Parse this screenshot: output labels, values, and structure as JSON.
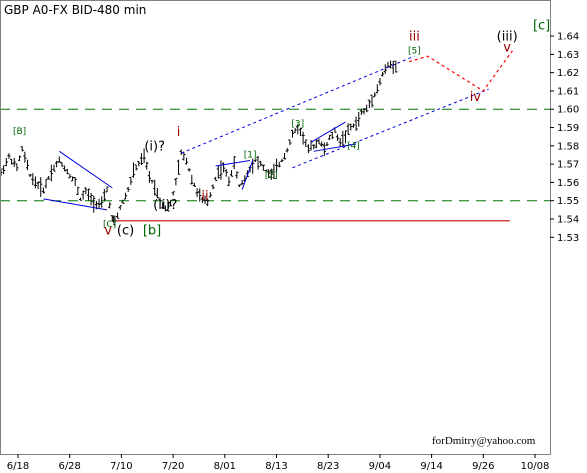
{
  "chart_data": {
    "type": "ohlc",
    "title": "GBP A0-FX BID-480 min",
    "credit": "forDmitry@yahoo.com",
    "xlabel": "",
    "ylabel": "",
    "ylim": [
      1.525,
      1.645
    ],
    "y_ticks": [
      1.53,
      1.54,
      1.55,
      1.56,
      1.57,
      1.58,
      1.59,
      1.6,
      1.61,
      1.62,
      1.63,
      1.64
    ],
    "x_ticks": [
      "6/18",
      "6/28",
      "7/10",
      "7/20",
      "8/01",
      "8/13",
      "8/23",
      "9/04",
      "9/14",
      "9/26",
      "10/08"
    ],
    "colors": {
      "bars": "#000000",
      "channel": "#0000dd",
      "support": "#cc0000",
      "dashed": "#007700",
      "projection": "#ff0000",
      "green_label": "#006600",
      "red_label": "#990000",
      "black_label": "#000000"
    },
    "price_path": [
      [
        0,
        1.565
      ],
      [
        1.5,
        1.574
      ],
      [
        3,
        1.568
      ],
      [
        4,
        1.578
      ],
      [
        5.5,
        1.564
      ],
      [
        6.5,
        1.56
      ],
      [
        8,
        1.556
      ],
      [
        9.5,
        1.566
      ],
      [
        11,
        1.572
      ],
      [
        12.5,
        1.566
      ],
      [
        14,
        1.56
      ],
      [
        15,
        1.551
      ],
      [
        16,
        1.555
      ],
      [
        17.5,
        1.549
      ],
      [
        19,
        1.548
      ],
      [
        20,
        1.556
      ],
      [
        21,
        1.54
      ],
      [
        21.5,
        1.538
      ],
      [
        22.5,
        1.546
      ],
      [
        24,
        1.556
      ],
      [
        25,
        1.566
      ],
      [
        26,
        1.57
      ],
      [
        27,
        1.574
      ],
      [
        28,
        1.563
      ],
      [
        29,
        1.558
      ],
      [
        30,
        1.55
      ],
      [
        31,
        1.546
      ],
      [
        32,
        1.548
      ],
      [
        33,
        1.56
      ],
      [
        34,
        1.576
      ],
      [
        35,
        1.572
      ],
      [
        36,
        1.562
      ],
      [
        37,
        1.555
      ],
      [
        38,
        1.55
      ],
      [
        39,
        1.549
      ],
      [
        40,
        1.558
      ],
      [
        41,
        1.566
      ],
      [
        42,
        1.568
      ],
      [
        43,
        1.561
      ],
      [
        44,
        1.57
      ],
      [
        45,
        1.558
      ],
      [
        46,
        1.562
      ],
      [
        47,
        1.568
      ],
      [
        48,
        1.572
      ],
      [
        49,
        1.57
      ],
      [
        50,
        1.566
      ],
      [
        51,
        1.564
      ],
      [
        52,
        1.568
      ],
      [
        53,
        1.572
      ],
      [
        54,
        1.578
      ],
      [
        55,
        1.586
      ],
      [
        56,
        1.59
      ],
      [
        57,
        1.585
      ],
      [
        58,
        1.578
      ],
      [
        59,
        1.58
      ],
      [
        60,
        1.583
      ],
      [
        61,
        1.578
      ],
      [
        62,
        1.584
      ],
      [
        63,
        1.588
      ],
      [
        64,
        1.582
      ],
      [
        65,
        1.586
      ],
      [
        66,
        1.59
      ],
      [
        67,
        1.592
      ],
      [
        68,
        1.598
      ],
      [
        69,
        1.6
      ],
      [
        70,
        1.606
      ],
      [
        71,
        1.611
      ],
      [
        72,
        1.619
      ],
      [
        73,
        1.624
      ],
      [
        74,
        1.624
      ],
      [
        75,
        1.625
      ]
    ],
    "wave_labels": [
      {
        "text": "[B]",
        "x": 3.5,
        "y": 1.5865,
        "style": "green_small"
      },
      {
        "text": "(i)?",
        "x": 29,
        "y": 1.5775,
        "style": "black"
      },
      {
        "text": "i",
        "x": 33.5,
        "y": 1.5855,
        "style": "red"
      },
      {
        "text": "(ii)?",
        "x": 31,
        "y": 1.5455,
        "style": "black"
      },
      {
        "text": "ii",
        "x": 38.5,
        "y": 1.5505,
        "style": "red"
      },
      {
        "text": "[C]",
        "x": 20.5,
        "y": 1.5355,
        "style": "green_small"
      },
      {
        "text": "v",
        "x": 20.2,
        "y": 1.5315,
        "style": "red"
      },
      {
        "text": "(c)",
        "x": 23.5,
        "y": 1.5315,
        "style": "black"
      },
      {
        "text": "[b]",
        "x": 28.5,
        "y": 1.5315,
        "style": "green"
      },
      {
        "text": "[1]",
        "x": 47,
        "y": 1.5735,
        "style": "green_small"
      },
      {
        "text": "[2]",
        "x": 51,
        "y": 1.5625,
        "style": "green_small"
      },
      {
        "text": "[3]",
        "x": 56,
        "y": 1.5905,
        "style": "green_small"
      },
      {
        "text": "[4]",
        "x": 66.5,
        "y": 1.5785,
        "style": "green_small"
      },
      {
        "text": "[5]",
        "x": 78,
        "y": 1.6305,
        "style": "green_small"
      },
      {
        "text": "iii",
        "x": 78,
        "y": 1.6375,
        "style": "red"
      },
      {
        "text": "(iii)",
        "x": 95.5,
        "y": 1.6375,
        "style": "black"
      },
      {
        "text": "v",
        "x": 95.5,
        "y": 1.6315,
        "style": "red"
      },
      {
        "text": "iv",
        "x": 89.5,
        "y": 1.6045,
        "style": "red"
      },
      {
        "text": "[c]",
        "x": 102,
        "y": 1.6435,
        "style": "green"
      }
    ],
    "support_level": {
      "y": 1.539,
      "x_from": 21,
      "x_to": 96
    },
    "dashed_levels": [
      1.6,
      1.55
    ],
    "channel_upper": [
      [
        34,
        1.576
      ],
      [
        78,
        1.629
      ]
    ],
    "channel_lower": [
      [
        55,
        1.568
      ],
      [
        92,
        1.611
      ]
    ],
    "trendlines": [
      [
        [
          11,
          1.577
        ],
        [
          21,
          1.557
        ]
      ],
      [
        [
          8,
          1.551
        ],
        [
          20,
          1.545
        ]
      ],
      [
        [
          40.5,
          1.569
        ],
        [
          47,
          1.572
        ]
      ],
      [
        [
          45.5,
          1.556
        ],
        [
          47.5,
          1.572
        ]
      ],
      [
        [
          58.5,
          1.582
        ],
        [
          65,
          1.593
        ]
      ],
      [
        [
          59,
          1.577
        ],
        [
          67,
          1.581
        ]
      ]
    ],
    "projection_path": [
      [
        77,
        1.626
      ],
      [
        80.5,
        1.629
      ],
      [
        91,
        1.61
      ],
      [
        96.5,
        1.632
      ]
    ]
  }
}
